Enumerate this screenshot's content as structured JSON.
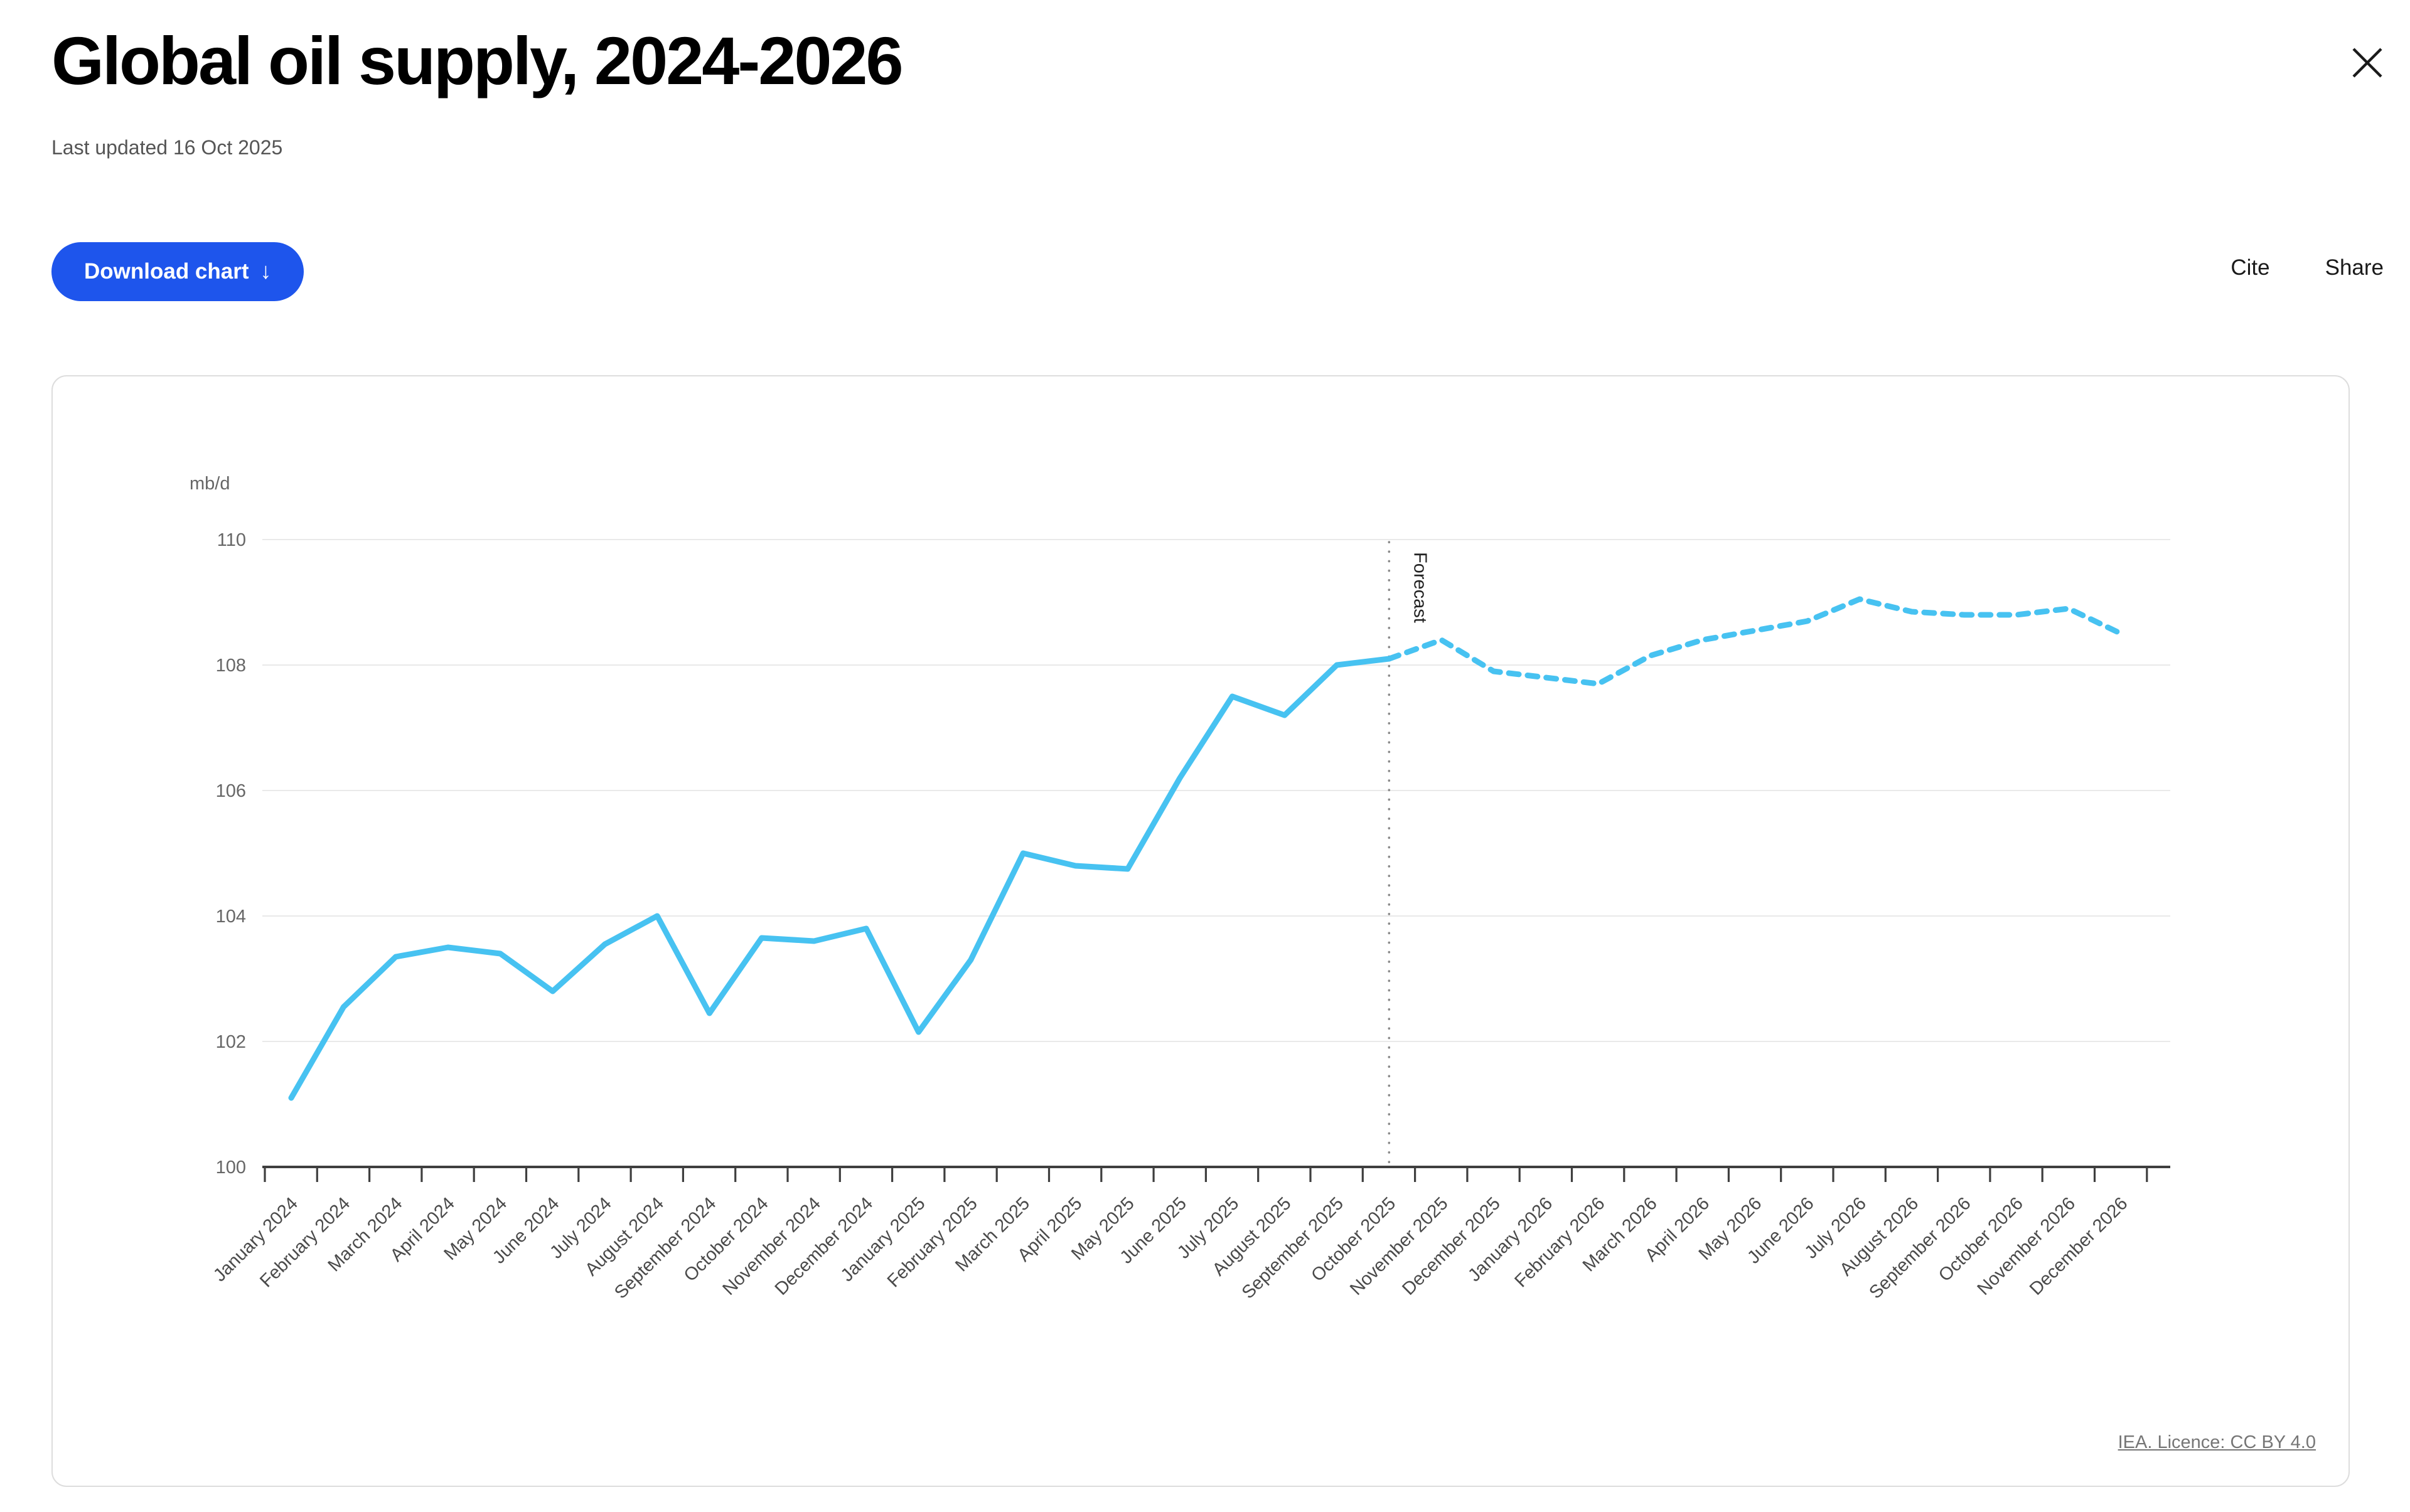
{
  "header": {
    "title": "Global oil supply, 2024-2026",
    "last_updated": "Last updated 16 Oct 2025"
  },
  "toolbar": {
    "download_label": "Download chart",
    "download_icon": "↓",
    "cite_label": "Cite",
    "share_label": "Share"
  },
  "chart_data": {
    "type": "line",
    "title": "Global oil supply, 2024-2026",
    "unit_label": "mb/d",
    "xlabel": "",
    "ylabel": "mb/d",
    "ylim": [
      100,
      110
    ],
    "yticks": [
      100,
      102,
      104,
      106,
      108,
      110
    ],
    "grid": "horizontal",
    "legend": "none",
    "categories": [
      "January 2024",
      "February 2024",
      "March 2024",
      "April 2024",
      "May 2024",
      "June 2024",
      "July 2024",
      "August 2024",
      "September 2024",
      "October 2024",
      "November 2024",
      "December 2024",
      "January 2025",
      "February 2025",
      "March 2025",
      "April 2025",
      "May 2025",
      "June 2025",
      "July 2025",
      "August 2025",
      "September 2025",
      "October 2025",
      "November 2025",
      "December 2025",
      "January 2026",
      "February 2026",
      "March 2026",
      "April 2026",
      "May 2026",
      "June 2026",
      "July 2026",
      "August 2026",
      "September 2026",
      "October 2026",
      "November 2026",
      "December 2026"
    ],
    "series": [
      {
        "name": "Global oil supply",
        "values": [
          101.1,
          102.55,
          103.35,
          103.5,
          103.4,
          102.8,
          103.55,
          104.0,
          102.45,
          103.65,
          103.6,
          103.8,
          102.15,
          103.3,
          105.0,
          104.8,
          104.75,
          106.2,
          107.5,
          107.2,
          108.0,
          108.1,
          108.4,
          107.9,
          107.8,
          107.7,
          108.15,
          108.4,
          108.55,
          108.7,
          109.05,
          108.85,
          108.8,
          108.8,
          108.9,
          108.5
        ],
        "solid_until_index": 21
      }
    ],
    "forecast": {
      "label": "Forecast",
      "start_index": 21
    }
  },
  "footer": {
    "licence": "IEA. Licence: CC BY 4.0"
  },
  "colors": {
    "accent_blue": "#1E55EC",
    "line_blue": "#47C2F1",
    "grid": "#E9E9E9",
    "axis": "#3F3F3F",
    "muted_text": "#666666",
    "xlabel_text": "#4A4A4A",
    "forecast_text": "#222222",
    "divider": "#8A8A8A"
  }
}
